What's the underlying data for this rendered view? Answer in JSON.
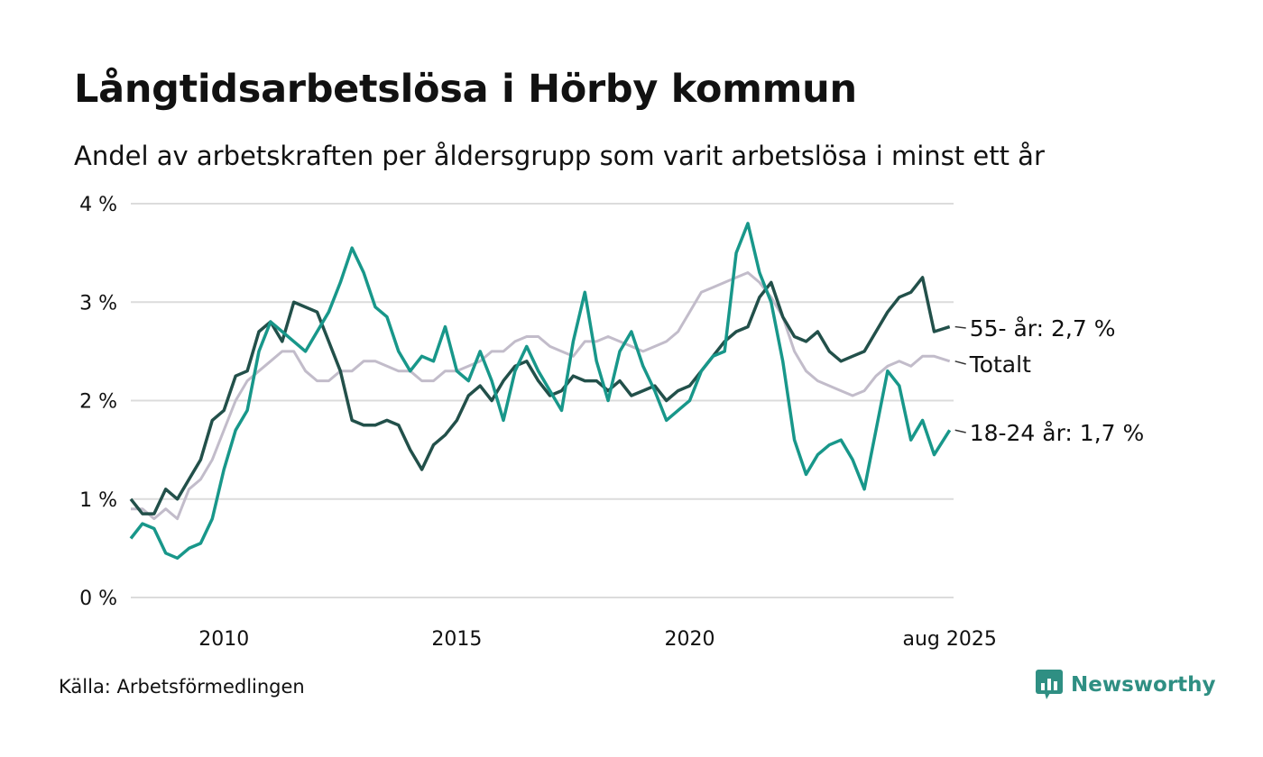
{
  "title": "Långtidsarbetslösa i Hörby kommun",
  "subtitle": "Andel av arbetskraften per åldersgrupp som varit arbetslösa i minst ett år",
  "source": "Källa: Arbetsförmedlingen",
  "brand": "Newsworthy",
  "chart_data": {
    "type": "line",
    "ylim": [
      0,
      4
    ],
    "yticks": [
      {
        "value": 0,
        "label": "0 %"
      },
      {
        "value": 1,
        "label": "1 %"
      },
      {
        "value": 2,
        "label": "2 %"
      },
      {
        "value": 3,
        "label": "3 %"
      },
      {
        "value": 4,
        "label": "4 %"
      }
    ],
    "xlim": [
      2008.0,
      2025.6667
    ],
    "xticks": [
      {
        "value": 2010.0,
        "label": "2010"
      },
      {
        "value": 2015.0,
        "label": "2015"
      },
      {
        "value": 2020.0,
        "label": "2020"
      },
      {
        "value": 2025.5833,
        "label": "aug 2025"
      }
    ],
    "grid": true,
    "colors": {
      "age_55": "#22504a",
      "total": "#c2bcca",
      "age_18_24": "#18978a",
      "grid": "#dcdcdc"
    },
    "series": [
      {
        "key": "total",
        "name": "Totalt",
        "end_label": "Totalt",
        "color": "#c2bcca",
        "width": 3,
        "points": [
          [
            2008.0,
            0.9
          ],
          [
            2008.25,
            0.9
          ],
          [
            2008.5,
            0.8
          ],
          [
            2008.75,
            0.9
          ],
          [
            2009.0,
            0.8
          ],
          [
            2009.25,
            1.1
          ],
          [
            2009.5,
            1.2
          ],
          [
            2009.75,
            1.4
          ],
          [
            2010.0,
            1.7
          ],
          [
            2010.25,
            2.0
          ],
          [
            2010.5,
            2.2
          ],
          [
            2010.75,
            2.3
          ],
          [
            2011.0,
            2.4
          ],
          [
            2011.25,
            2.5
          ],
          [
            2011.5,
            2.5
          ],
          [
            2011.75,
            2.3
          ],
          [
            2012.0,
            2.2
          ],
          [
            2012.25,
            2.2
          ],
          [
            2012.5,
            2.3
          ],
          [
            2012.75,
            2.3
          ],
          [
            2013.0,
            2.4
          ],
          [
            2013.25,
            2.4
          ],
          [
            2013.5,
            2.35
          ],
          [
            2013.75,
            2.3
          ],
          [
            2014.0,
            2.3
          ],
          [
            2014.25,
            2.2
          ],
          [
            2014.5,
            2.2
          ],
          [
            2014.75,
            2.3
          ],
          [
            2015.0,
            2.3
          ],
          [
            2015.25,
            2.35
          ],
          [
            2015.5,
            2.4
          ],
          [
            2015.75,
            2.5
          ],
          [
            2016.0,
            2.5
          ],
          [
            2016.25,
            2.6
          ],
          [
            2016.5,
            2.65
          ],
          [
            2016.75,
            2.65
          ],
          [
            2017.0,
            2.55
          ],
          [
            2017.25,
            2.5
          ],
          [
            2017.5,
            2.45
          ],
          [
            2017.75,
            2.6
          ],
          [
            2018.0,
            2.6
          ],
          [
            2018.25,
            2.65
          ],
          [
            2018.5,
            2.6
          ],
          [
            2018.75,
            2.55
          ],
          [
            2019.0,
            2.5
          ],
          [
            2019.25,
            2.55
          ],
          [
            2019.5,
            2.6
          ],
          [
            2019.75,
            2.7
          ],
          [
            2020.0,
            2.9
          ],
          [
            2020.25,
            3.1
          ],
          [
            2020.5,
            3.15
          ],
          [
            2020.75,
            3.2
          ],
          [
            2021.0,
            3.25
          ],
          [
            2021.25,
            3.3
          ],
          [
            2021.5,
            3.2
          ],
          [
            2021.75,
            3.05
          ],
          [
            2022.0,
            2.85
          ],
          [
            2022.25,
            2.5
          ],
          [
            2022.5,
            2.3
          ],
          [
            2022.75,
            2.2
          ],
          [
            2023.0,
            2.15
          ],
          [
            2023.25,
            2.1
          ],
          [
            2023.5,
            2.05
          ],
          [
            2023.75,
            2.1
          ],
          [
            2024.0,
            2.25
          ],
          [
            2024.25,
            2.35
          ],
          [
            2024.5,
            2.4
          ],
          [
            2024.75,
            2.35
          ],
          [
            2025.0,
            2.45
          ],
          [
            2025.25,
            2.45
          ],
          [
            2025.5833,
            2.4
          ]
        ]
      },
      {
        "key": "age_55",
        "name": "55- år",
        "end_label": "55- år: 2,7 %",
        "color": "#22504a",
        "width": 3.5,
        "points": [
          [
            2008.0,
            1.0
          ],
          [
            2008.25,
            0.85
          ],
          [
            2008.5,
            0.85
          ],
          [
            2008.75,
            1.1
          ],
          [
            2009.0,
            1.0
          ],
          [
            2009.25,
            1.2
          ],
          [
            2009.5,
            1.4
          ],
          [
            2009.75,
            1.8
          ],
          [
            2010.0,
            1.9
          ],
          [
            2010.25,
            2.25
          ],
          [
            2010.5,
            2.3
          ],
          [
            2010.75,
            2.7
          ],
          [
            2011.0,
            2.8
          ],
          [
            2011.25,
            2.6
          ],
          [
            2011.5,
            3.0
          ],
          [
            2011.75,
            2.95
          ],
          [
            2012.0,
            2.9
          ],
          [
            2012.25,
            2.6
          ],
          [
            2012.5,
            2.3
          ],
          [
            2012.75,
            1.8
          ],
          [
            2013.0,
            1.75
          ],
          [
            2013.25,
            1.75
          ],
          [
            2013.5,
            1.8
          ],
          [
            2013.75,
            1.75
          ],
          [
            2014.0,
            1.5
          ],
          [
            2014.25,
            1.3
          ],
          [
            2014.5,
            1.55
          ],
          [
            2014.75,
            1.65
          ],
          [
            2015.0,
            1.8
          ],
          [
            2015.25,
            2.05
          ],
          [
            2015.5,
            2.15
          ],
          [
            2015.75,
            2.0
          ],
          [
            2016.0,
            2.2
          ],
          [
            2016.25,
            2.35
          ],
          [
            2016.5,
            2.4
          ],
          [
            2016.75,
            2.2
          ],
          [
            2017.0,
            2.05
          ],
          [
            2017.25,
            2.1
          ],
          [
            2017.5,
            2.25
          ],
          [
            2017.75,
            2.2
          ],
          [
            2018.0,
            2.2
          ],
          [
            2018.25,
            2.1
          ],
          [
            2018.5,
            2.2
          ],
          [
            2018.75,
            2.05
          ],
          [
            2019.0,
            2.1
          ],
          [
            2019.25,
            2.15
          ],
          [
            2019.5,
            2.0
          ],
          [
            2019.75,
            2.1
          ],
          [
            2020.0,
            2.15
          ],
          [
            2020.25,
            2.3
          ],
          [
            2020.5,
            2.45
          ],
          [
            2020.75,
            2.6
          ],
          [
            2021.0,
            2.7
          ],
          [
            2021.25,
            2.75
          ],
          [
            2021.5,
            3.05
          ],
          [
            2021.75,
            3.2
          ],
          [
            2022.0,
            2.85
          ],
          [
            2022.25,
            2.65
          ],
          [
            2022.5,
            2.6
          ],
          [
            2022.75,
            2.7
          ],
          [
            2023.0,
            2.5
          ],
          [
            2023.25,
            2.4
          ],
          [
            2023.5,
            2.45
          ],
          [
            2023.75,
            2.5
          ],
          [
            2024.0,
            2.7
          ],
          [
            2024.25,
            2.9
          ],
          [
            2024.5,
            3.05
          ],
          [
            2024.75,
            3.1
          ],
          [
            2025.0,
            3.25
          ],
          [
            2025.25,
            2.7
          ],
          [
            2025.5833,
            2.75
          ]
        ]
      },
      {
        "key": "age_18_24",
        "name": "18-24 år",
        "end_label": "18-24 år: 1,7 %",
        "color": "#18978a",
        "width": 3.5,
        "points": [
          [
            2008.0,
            0.6
          ],
          [
            2008.25,
            0.75
          ],
          [
            2008.5,
            0.7
          ],
          [
            2008.75,
            0.45
          ],
          [
            2009.0,
            0.4
          ],
          [
            2009.25,
            0.5
          ],
          [
            2009.5,
            0.55
          ],
          [
            2009.75,
            0.8
          ],
          [
            2010.0,
            1.3
          ],
          [
            2010.25,
            1.7
          ],
          [
            2010.5,
            1.9
          ],
          [
            2010.75,
            2.5
          ],
          [
            2011.0,
            2.8
          ],
          [
            2011.25,
            2.7
          ],
          [
            2011.5,
            2.6
          ],
          [
            2011.75,
            2.5
          ],
          [
            2012.0,
            2.7
          ],
          [
            2012.25,
            2.9
          ],
          [
            2012.5,
            3.2
          ],
          [
            2012.75,
            3.55
          ],
          [
            2013.0,
            3.3
          ],
          [
            2013.25,
            2.95
          ],
          [
            2013.5,
            2.85
          ],
          [
            2013.75,
            2.5
          ],
          [
            2014.0,
            2.3
          ],
          [
            2014.25,
            2.45
          ],
          [
            2014.5,
            2.4
          ],
          [
            2014.75,
            2.75
          ],
          [
            2015.0,
            2.3
          ],
          [
            2015.25,
            2.2
          ],
          [
            2015.5,
            2.5
          ],
          [
            2015.75,
            2.2
          ],
          [
            2016.0,
            1.8
          ],
          [
            2016.25,
            2.3
          ],
          [
            2016.5,
            2.55
          ],
          [
            2016.75,
            2.3
          ],
          [
            2017.0,
            2.1
          ],
          [
            2017.25,
            1.9
          ],
          [
            2017.5,
            2.6
          ],
          [
            2017.75,
            3.1
          ],
          [
            2018.0,
            2.4
          ],
          [
            2018.25,
            2.0
          ],
          [
            2018.5,
            2.5
          ],
          [
            2018.75,
            2.7
          ],
          [
            2019.0,
            2.35
          ],
          [
            2019.25,
            2.1
          ],
          [
            2019.5,
            1.8
          ],
          [
            2019.75,
            1.9
          ],
          [
            2020.0,
            2.0
          ],
          [
            2020.25,
            2.3
          ],
          [
            2020.5,
            2.45
          ],
          [
            2020.75,
            2.5
          ],
          [
            2021.0,
            3.5
          ],
          [
            2021.25,
            3.8
          ],
          [
            2021.5,
            3.3
          ],
          [
            2021.75,
            3.0
          ],
          [
            2022.0,
            2.4
          ],
          [
            2022.25,
            1.6
          ],
          [
            2022.5,
            1.25
          ],
          [
            2022.75,
            1.45
          ],
          [
            2023.0,
            1.55
          ],
          [
            2023.25,
            1.6
          ],
          [
            2023.5,
            1.4
          ],
          [
            2023.75,
            1.1
          ],
          [
            2024.0,
            1.7
          ],
          [
            2024.25,
            2.3
          ],
          [
            2024.5,
            2.15
          ],
          [
            2024.75,
            1.6
          ],
          [
            2025.0,
            1.8
          ],
          [
            2025.25,
            1.45
          ],
          [
            2025.5833,
            1.7
          ]
        ]
      }
    ]
  }
}
